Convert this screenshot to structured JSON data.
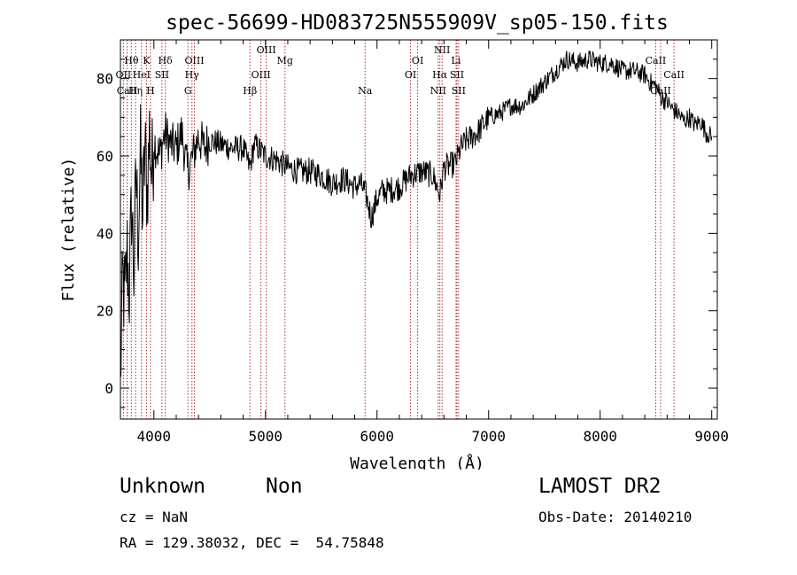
{
  "chart_data": {
    "type": "line",
    "title": "spec-56699-HD083725N555909V_sp05-150.fits",
    "xlabel": "Wavelength (Å)",
    "ylabel": "Flux (relative)",
    "xlim": [
      3700,
      9050
    ],
    "ylim": [
      -8,
      90
    ],
    "xticks": [
      4000,
      5000,
      6000,
      7000,
      8000,
      9000
    ],
    "yticks": [
      0,
      20,
      40,
      60,
      80
    ],
    "xticklabels": [
      "4000",
      "5000",
      "6000",
      "7000",
      "8000",
      "9000"
    ],
    "yticklabels": [
      "0",
      "20",
      "40",
      "60",
      "80"
    ],
    "series": [
      {
        "color": "#000000",
        "points": [
          [
            3700,
            2
          ],
          [
            3720,
            28
          ],
          [
            3740,
            22
          ],
          [
            3760,
            35
          ],
          [
            3780,
            25
          ],
          [
            3800,
            48
          ],
          [
            3820,
            30
          ],
          [
            3840,
            55
          ],
          [
            3860,
            40
          ],
          [
            3880,
            60
          ],
          [
            3900,
            45
          ],
          [
            3920,
            62
          ],
          [
            3940,
            50
          ],
          [
            3960,
            66
          ],
          [
            3980,
            55
          ],
          [
            4000,
            64
          ],
          [
            4050,
            60
          ],
          [
            4100,
            66
          ],
          [
            4150,
            63
          ],
          [
            4200,
            62
          ],
          [
            4250,
            66
          ],
          [
            4300,
            56
          ],
          [
            4350,
            60
          ],
          [
            4400,
            65
          ],
          [
            4450,
            62
          ],
          [
            4500,
            64
          ],
          [
            4600,
            63
          ],
          [
            4700,
            62
          ],
          [
            4800,
            62
          ],
          [
            4860,
            57
          ],
          [
            4900,
            63
          ],
          [
            5000,
            60
          ],
          [
            5100,
            59
          ],
          [
            5200,
            57
          ],
          [
            5300,
            56
          ],
          [
            5400,
            56
          ],
          [
            5500,
            55
          ],
          [
            5600,
            53
          ],
          [
            5700,
            54
          ],
          [
            5800,
            52
          ],
          [
            5850,
            53
          ],
          [
            5900,
            50
          ],
          [
            5950,
            44
          ],
          [
            6000,
            49
          ],
          [
            6050,
            51
          ],
          [
            6100,
            51
          ],
          [
            6200,
            52
          ],
          [
            6300,
            55
          ],
          [
            6400,
            56
          ],
          [
            6500,
            55
          ],
          [
            6563,
            50
          ],
          [
            6600,
            57
          ],
          [
            6700,
            58
          ],
          [
            6750,
            62
          ],
          [
            6800,
            64
          ],
          [
            6900,
            66
          ],
          [
            7000,
            70
          ],
          [
            7100,
            71
          ],
          [
            7200,
            73
          ],
          [
            7300,
            73
          ],
          [
            7400,
            76
          ],
          [
            7500,
            79
          ],
          [
            7600,
            82
          ],
          [
            7700,
            85
          ],
          [
            7800,
            84
          ],
          [
            7900,
            85
          ],
          [
            8000,
            84
          ],
          [
            8100,
            84
          ],
          [
            8200,
            82
          ],
          [
            8300,
            82
          ],
          [
            8400,
            81
          ],
          [
            8450,
            79
          ],
          [
            8500,
            78
          ],
          [
            8550,
            75
          ],
          [
            8600,
            74
          ],
          [
            8650,
            72
          ],
          [
            8700,
            71
          ],
          [
            8750,
            69
          ],
          [
            8800,
            70
          ],
          [
            8850,
            68
          ],
          [
            8900,
            69
          ],
          [
            8950,
            66
          ],
          [
            9000,
            65
          ]
        ]
      }
    ],
    "lines": [
      {
        "label": "Hθ",
        "wave": 3798,
        "row": 1
      },
      {
        "label": "OII",
        "wave": 3727,
        "row": 2
      },
      {
        "label": "Hη",
        "wave": 3835,
        "row": 3
      },
      {
        "label": "CaII",
        "wave": 3760,
        "row": 3
      },
      {
        "label": "HeI",
        "wave": 3889,
        "row": 2
      },
      {
        "label": "K",
        "wave": 3934,
        "row": 1
      },
      {
        "label": "H",
        "wave": 3969,
        "row": 3
      },
      {
        "label": "SII",
        "wave": 4072,
        "row": 2
      },
      {
        "label": "Hδ",
        "wave": 4102,
        "row": 1
      },
      {
        "label": "G",
        "wave": 4305,
        "row": 3
      },
      {
        "label": "OIII",
        "wave": 4363,
        "row": 1
      },
      {
        "label": "Hγ",
        "wave": 4341,
        "row": 2
      },
      {
        "label": "Hβ",
        "wave": 4861,
        "row": 3
      },
      {
        "label": "OIII",
        "wave": 4959,
        "row": 2
      },
      {
        "label": "OIII",
        "wave": 5007,
        "row": 0
      },
      {
        "label": "Mg",
        "wave": 5175,
        "row": 1
      },
      {
        "label": "Na",
        "wave": 5893,
        "row": 3
      },
      {
        "label": "OI",
        "wave": 6300,
        "row": 2
      },
      {
        "label": "OI",
        "wave": 6364,
        "row": 1
      },
      {
        "label": "NII",
        "wave": 6548,
        "row": 3
      },
      {
        "label": "Hα",
        "wave": 6563,
        "row": 2
      },
      {
        "label": "NII",
        "wave": 6583,
        "row": 0
      },
      {
        "label": "Li",
        "wave": 6708,
        "row": 1
      },
      {
        "label": "SII",
        "wave": 6716,
        "row": 2
      },
      {
        "label": "SII",
        "wave": 6731,
        "row": 3
      },
      {
        "label": "CaII",
        "wave": 8498,
        "row": 1
      },
      {
        "label": "CaII",
        "wave": 8542,
        "row": 3
      },
      {
        "label": "CaII",
        "wave": 8662,
        "row": 2
      }
    ]
  },
  "info": {
    "class": "Unknown",
    "subclass": "Non",
    "survey": "LAMOST DR2",
    "cz": "cz = NaN",
    "obs_date": "Obs-Date: 20140210",
    "radec": "RA = 129.38032, DEC =  54.75848"
  }
}
